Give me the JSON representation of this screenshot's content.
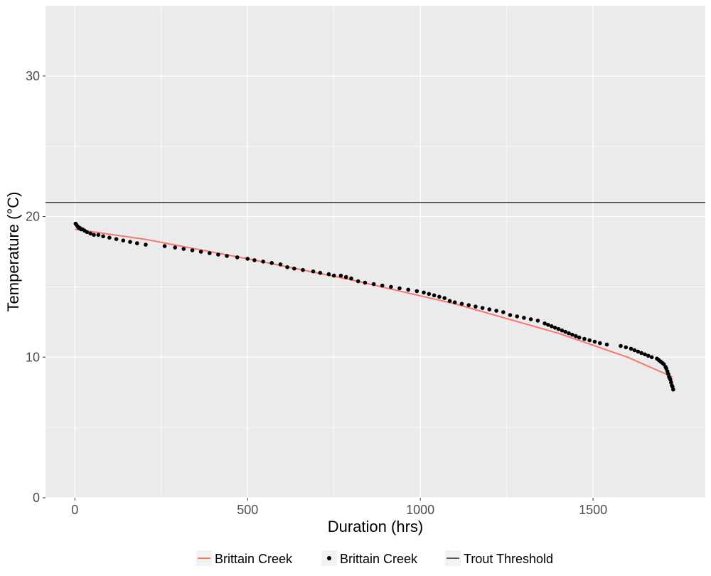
{
  "chart_data": {
    "type": "scatter",
    "xlabel": "Duration (hrs)",
    "ylabel": "Temperature (°C)",
    "xlim": [
      -85,
      1825
    ],
    "ylim": [
      0,
      35
    ],
    "x_ticks": [
      0,
      500,
      1000,
      1500
    ],
    "x_tick_labels": [
      "0",
      "500",
      "1000",
      "1500"
    ],
    "y_ticks": [
      0,
      10,
      20,
      30
    ],
    "y_tick_labels": [
      "0",
      "10",
      "20",
      "30"
    ],
    "grid": true,
    "legend_position": "bottom",
    "threshold": {
      "name": "Trout Threshold",
      "value": 21,
      "color": "#000000"
    },
    "series": [
      {
        "name": "Brittain Creek",
        "kind": "line",
        "color": "#F8766D",
        "x": [
          0,
          200,
          500,
          800,
          1100,
          1400,
          1600,
          1730
        ],
        "y": [
          19.1,
          18.4,
          17.0,
          15.5,
          13.8,
          11.7,
          10.0,
          8.6
        ]
      },
      {
        "name": "Brittain Creek",
        "kind": "points",
        "color": "#000000",
        "x": [
          2,
          5,
          8,
          11,
          14,
          18,
          22,
          28,
          35,
          45,
          55,
          68,
          82,
          100,
          120,
          140,
          160,
          180,
          205,
          260,
          290,
          315,
          340,
          365,
          390,
          415,
          440,
          470,
          500,
          520,
          545,
          570,
          595,
          615,
          635,
          660,
          690,
          710,
          735,
          750,
          770,
          785,
          800,
          820,
          840,
          865,
          890,
          915,
          940,
          965,
          990,
          1010,
          1025,
          1040,
          1055,
          1070,
          1085,
          1100,
          1120,
          1140,
          1160,
          1180,
          1200,
          1220,
          1240,
          1260,
          1280,
          1300,
          1320,
          1340,
          1360,
          1370,
          1380,
          1390,
          1400,
          1410,
          1420,
          1430,
          1440,
          1450,
          1460,
          1475,
          1490,
          1505,
          1520,
          1540,
          1580,
          1595,
          1610,
          1620,
          1630,
          1640,
          1650,
          1660,
          1670,
          1685,
          1690,
          1695,
          1700,
          1705,
          1710,
          1712,
          1715,
          1718,
          1720,
          1722,
          1724,
          1726,
          1728,
          1730,
          1732
        ],
        "y": [
          19.5,
          19.4,
          19.3,
          19.2,
          19.2,
          19.1,
          19.1,
          19.0,
          18.9,
          18.8,
          18.7,
          18.7,
          18.6,
          18.5,
          18.4,
          18.3,
          18.2,
          18.1,
          18.0,
          17.9,
          17.8,
          17.7,
          17.6,
          17.5,
          17.4,
          17.3,
          17.2,
          17.1,
          17.0,
          16.9,
          16.8,
          16.7,
          16.6,
          16.4,
          16.3,
          16.2,
          16.1,
          16.0,
          15.9,
          15.8,
          15.8,
          15.7,
          15.6,
          15.4,
          15.3,
          15.2,
          15.1,
          15.0,
          14.9,
          14.8,
          14.7,
          14.6,
          14.5,
          14.4,
          14.3,
          14.2,
          14.0,
          13.9,
          13.8,
          13.7,
          13.6,
          13.5,
          13.4,
          13.3,
          13.2,
          13.0,
          12.9,
          12.8,
          12.7,
          12.6,
          12.4,
          12.3,
          12.2,
          12.1,
          12.0,
          11.9,
          11.8,
          11.7,
          11.6,
          11.5,
          11.4,
          11.3,
          11.2,
          11.1,
          11.0,
          10.9,
          10.8,
          10.7,
          10.6,
          10.5,
          10.4,
          10.3,
          10.2,
          10.1,
          10.0,
          9.9,
          9.8,
          9.7,
          9.6,
          9.5,
          9.3,
          9.2,
          9.0,
          8.8,
          8.6,
          8.5,
          8.4,
          8.2,
          8.0,
          7.9,
          7.7
        ]
      }
    ],
    "legend": [
      {
        "label": "Brittain Creek",
        "kind": "line",
        "color": "#F8766D"
      },
      {
        "label": "Brittain Creek",
        "kind": "point",
        "color": "#000000"
      },
      {
        "label": "Trout Threshold",
        "kind": "line",
        "color": "#000000"
      }
    ]
  }
}
